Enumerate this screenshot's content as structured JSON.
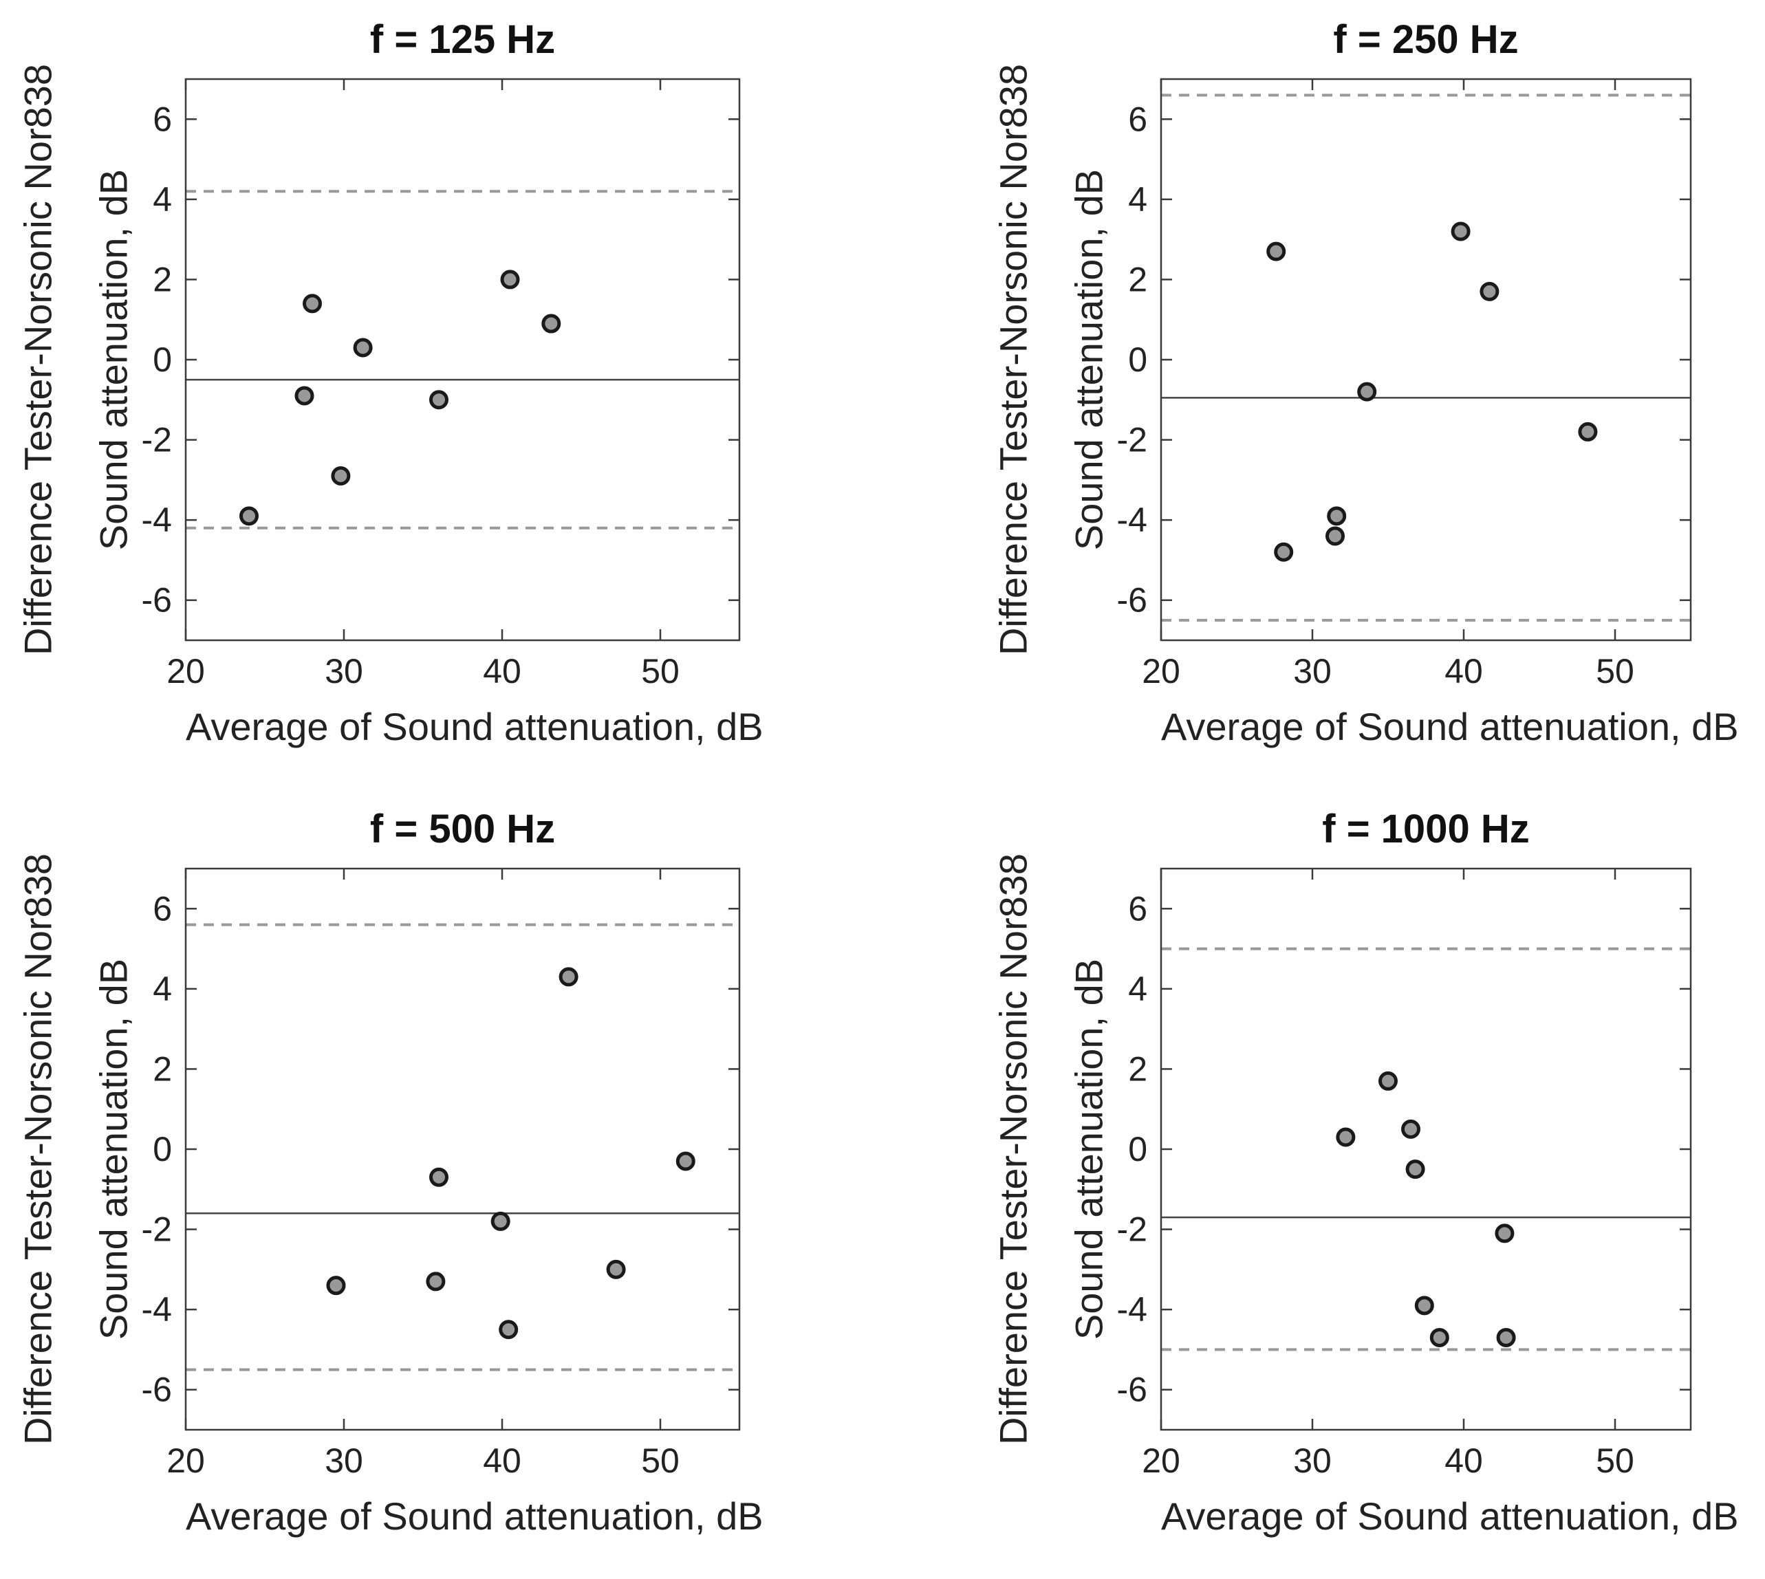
{
  "figure": {
    "kind": "2x2 Bland-Altman scatter grid",
    "background": "#ffffff"
  },
  "colors": {
    "axis": "#3a3a3a",
    "tick_label": "#222222",
    "mean_line": "#444444",
    "loa_dashed": "#999999",
    "marker_fill": "#999999",
    "marker_edge": "#1a1a1a"
  },
  "chart_data": [
    {
      "type": "scatter",
      "title": "f = 125 Hz",
      "xlabel": "Average of Sound attenuation, dB",
      "ylabel_line1": "Difference Tester-Norsonic Nor838",
      "ylabel_line2": "Sound attenuation, dB",
      "xlim": [
        20,
        55
      ],
      "ylim": [
        -7,
        7
      ],
      "xticks": [
        20,
        30,
        40,
        50
      ],
      "yticks": [
        -6,
        -4,
        -2,
        0,
        2,
        4,
        6
      ],
      "grid": false,
      "mean_line": -0.5,
      "upper_loa": 4.2,
      "lower_loa": -4.2,
      "points": [
        [
          24.0,
          -3.9
        ],
        [
          27.5,
          -0.9
        ],
        [
          28.0,
          1.4
        ],
        [
          29.8,
          -2.9
        ],
        [
          31.2,
          0.3
        ],
        [
          36.0,
          -1.0
        ],
        [
          40.5,
          2.0
        ],
        [
          43.1,
          0.9
        ]
      ]
    },
    {
      "type": "scatter",
      "title": "f = 250 Hz",
      "xlabel": "Average of Sound attenuation, dB",
      "ylabel_line1": "Difference Tester-Norsonic Nor838",
      "ylabel_line2": "Sound attenuation, dB",
      "xlim": [
        20,
        55
      ],
      "ylim": [
        -7,
        7
      ],
      "xticks": [
        20,
        30,
        40,
        50
      ],
      "yticks": [
        -6,
        -4,
        -2,
        0,
        2,
        4,
        6
      ],
      "grid": false,
      "mean_line": -0.95,
      "upper_loa": 6.6,
      "lower_loa": -6.5,
      "points": [
        [
          27.6,
          2.7
        ],
        [
          28.1,
          -4.8
        ],
        [
          31.5,
          -4.4
        ],
        [
          31.6,
          -3.9
        ],
        [
          33.6,
          -0.8
        ],
        [
          39.8,
          3.2
        ],
        [
          41.7,
          1.7
        ],
        [
          48.2,
          -1.8
        ]
      ]
    },
    {
      "type": "scatter",
      "title": "f = 500 Hz",
      "xlabel": "Average of Sound attenuation, dB",
      "ylabel_line1": "Difference Tester-Norsonic Nor838",
      "ylabel_line2": "Sound attenuation, dB",
      "xlim": [
        20,
        55
      ],
      "ylim": [
        -7,
        7
      ],
      "xticks": [
        20,
        30,
        40,
        50
      ],
      "yticks": [
        -6,
        -4,
        -2,
        0,
        2,
        4,
        6
      ],
      "grid": false,
      "mean_line": -1.6,
      "upper_loa": 5.6,
      "lower_loa": -5.5,
      "points": [
        [
          29.5,
          -3.4
        ],
        [
          35.8,
          -3.3
        ],
        [
          36.0,
          -0.7
        ],
        [
          39.9,
          -1.8
        ],
        [
          40.4,
          -4.5
        ],
        [
          44.2,
          4.3
        ],
        [
          47.2,
          -3.0
        ],
        [
          51.6,
          -0.3
        ]
      ]
    },
    {
      "type": "scatter",
      "title": "f = 1000 Hz",
      "xlabel": "Average of Sound attenuation, dB",
      "ylabel_line1": "Difference Tester-Norsonic Nor838",
      "ylabel_line2": "Sound attenuation, dB",
      "xlim": [
        20,
        55
      ],
      "ylim": [
        -7,
        7
      ],
      "xticks": [
        20,
        30,
        40,
        50
      ],
      "yticks": [
        -6,
        -4,
        -2,
        0,
        2,
        4,
        6
      ],
      "grid": false,
      "mean_line": -1.7,
      "upper_loa": 5.0,
      "lower_loa": -5.0,
      "points": [
        [
          32.2,
          0.3
        ],
        [
          35.0,
          1.7
        ],
        [
          36.5,
          0.5
        ],
        [
          36.8,
          -0.5
        ],
        [
          37.4,
          -3.9
        ],
        [
          38.4,
          -4.7
        ],
        [
          42.7,
          -2.1
        ],
        [
          42.8,
          -4.7
        ]
      ]
    }
  ]
}
